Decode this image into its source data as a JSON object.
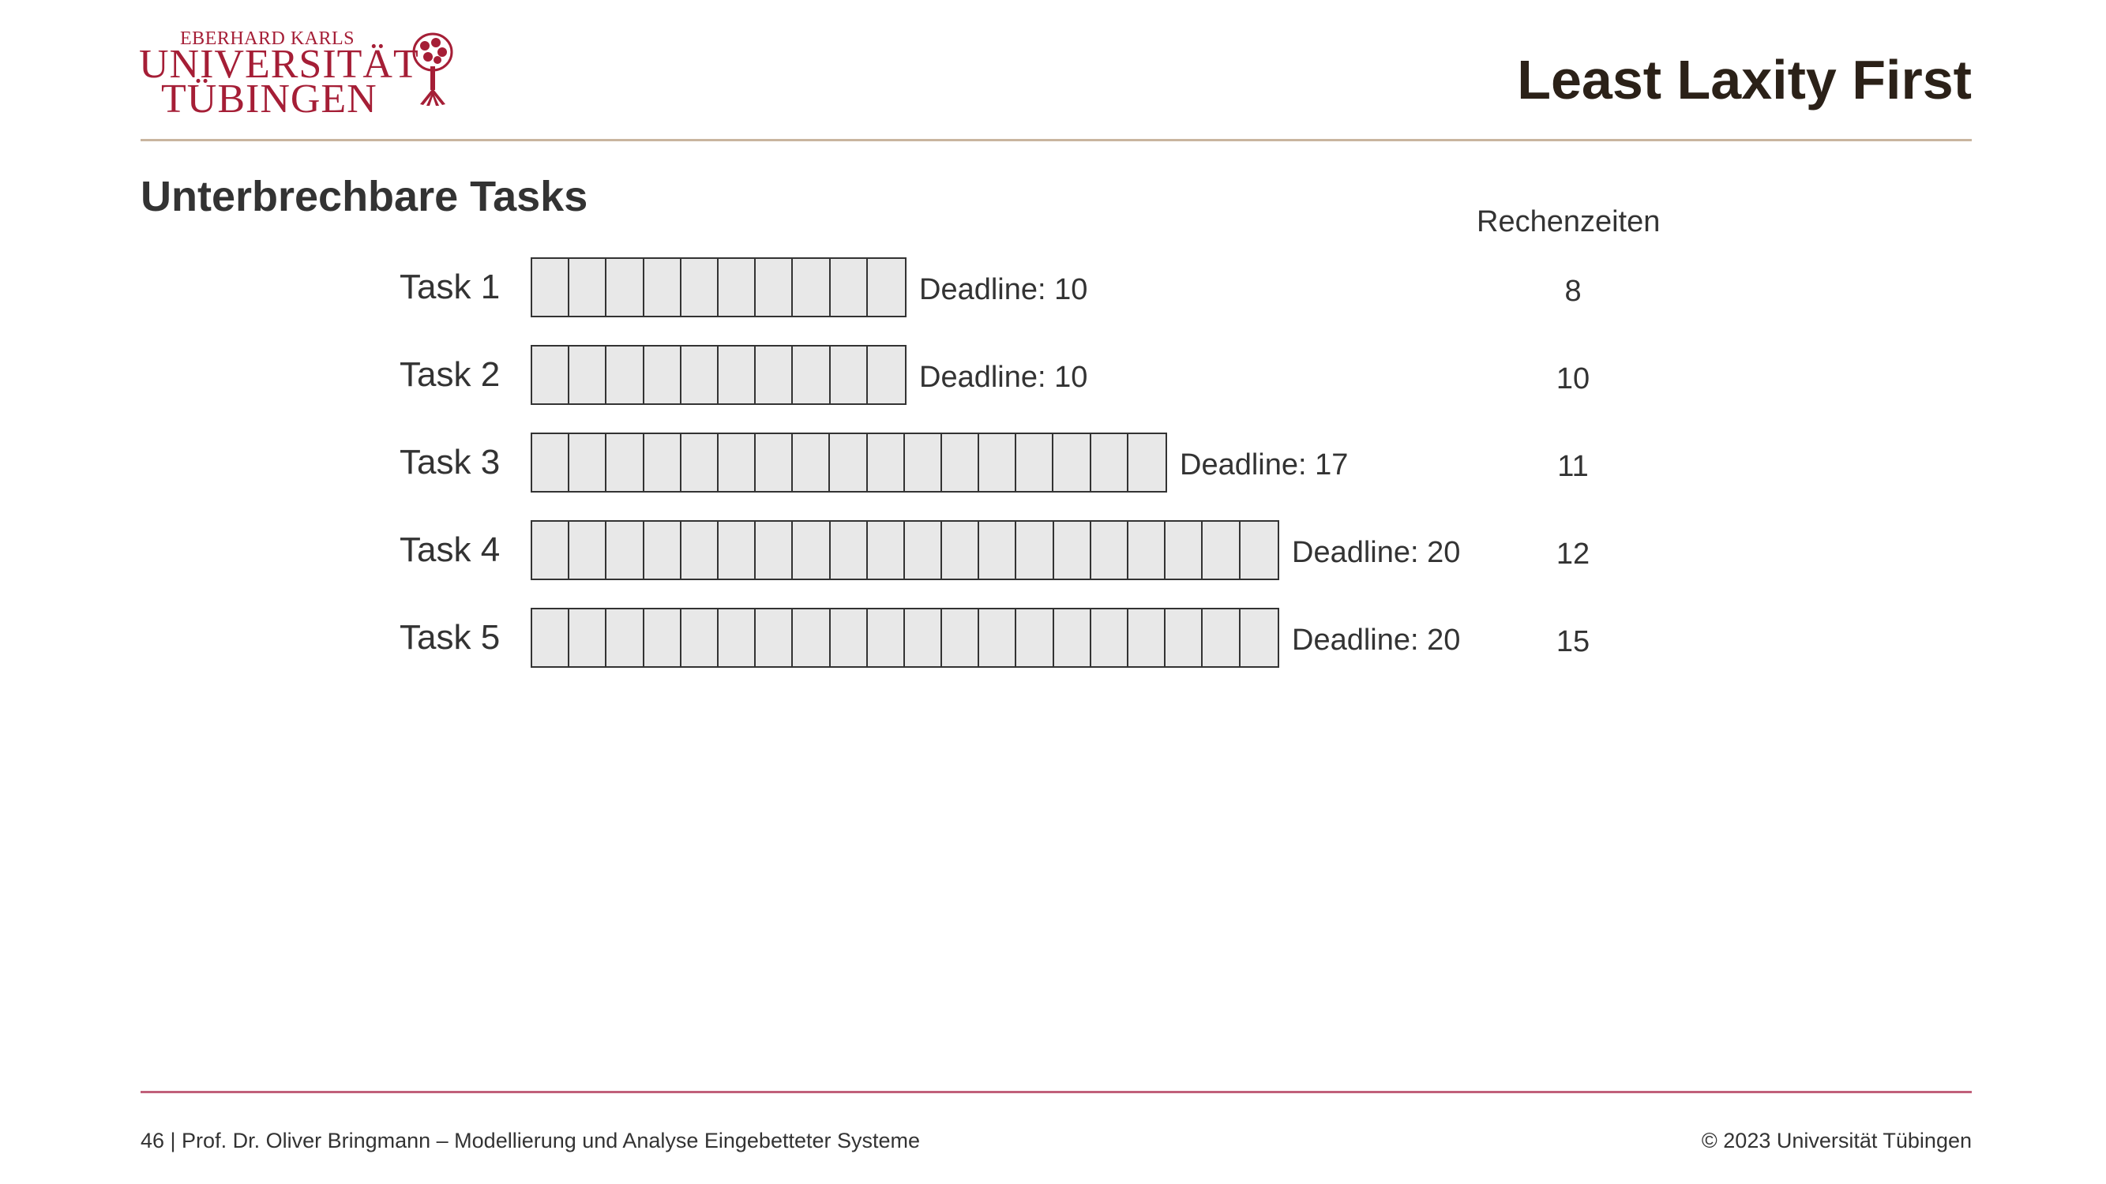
{
  "logo": {
    "line1": "EBERHARD KARLS",
    "line2": "UNIVERSITÄT",
    "line3": "TÜBINGEN",
    "color": "#a51e36"
  },
  "slide": {
    "title": "Least Laxity First",
    "subtitle": "Unterbrechbare Tasks",
    "computation_header": "Rechenzeiten"
  },
  "tasks": [
    {
      "label": "Task 1",
      "slots": 10,
      "deadline": "Deadline: 10",
      "computation_time": "8"
    },
    {
      "label": "Task 2",
      "slots": 10,
      "deadline": "Deadline: 10",
      "computation_time": "10"
    },
    {
      "label": "Task 3",
      "slots": 17,
      "deadline": "Deadline: 17",
      "computation_time": "11"
    },
    {
      "label": "Task 4",
      "slots": 20,
      "deadline": "Deadline: 20",
      "computation_time": "12"
    },
    {
      "label": "Task 5",
      "slots": 20,
      "deadline": "Deadline: 20",
      "computation_time": "15"
    }
  ],
  "footer": {
    "left": "46 | Prof. Dr. Oliver Bringmann – Modellierung und Analyse Eingebetteter Systeme",
    "right": "© 2023 Universität Tübingen"
  },
  "colors": {
    "accent_rule_top": "#c9b59f",
    "accent_rule_bottom": "#c0607a",
    "cell_fill": "#e8e8e8"
  }
}
